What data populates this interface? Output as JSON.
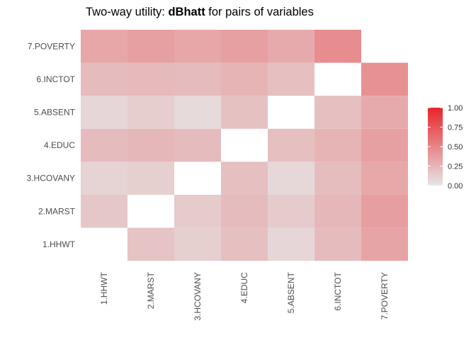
{
  "chart_data": {
    "type": "heatmap",
    "title_prefix": "Two-way utility: ",
    "title_metric": "dBhatt",
    "title_suffix": " for pairs of variables",
    "variables": [
      "1.HHWT",
      "2.MARST",
      "3.HCOVANY",
      "4.EDUC",
      "5.ABSENT",
      "6.INCTOT",
      "7.POVERTY"
    ],
    "cells": [
      {
        "x": "1.HHWT",
        "y": "2.MARST",
        "value": 0.16
      },
      {
        "x": "1.HHWT",
        "y": "3.HCOVANY",
        "value": 0.1
      },
      {
        "x": "1.HHWT",
        "y": "4.EDUC",
        "value": 0.22
      },
      {
        "x": "1.HHWT",
        "y": "5.ABSENT",
        "value": 0.08
      },
      {
        "x": "1.HHWT",
        "y": "6.INCTOT",
        "value": 0.22
      },
      {
        "x": "1.HHWT",
        "y": "7.POVERTY",
        "value": 0.33
      },
      {
        "x": "2.MARST",
        "y": "1.HHWT",
        "value": 0.18
      },
      {
        "x": "2.MARST",
        "y": "3.HCOVANY",
        "value": 0.12
      },
      {
        "x": "2.MARST",
        "y": "4.EDUC",
        "value": 0.24
      },
      {
        "x": "2.MARST",
        "y": "5.ABSENT",
        "value": 0.13
      },
      {
        "x": "2.MARST",
        "y": "6.INCTOT",
        "value": 0.23
      },
      {
        "x": "2.MARST",
        "y": "7.POVERTY",
        "value": 0.36
      },
      {
        "x": "3.HCOVANY",
        "y": "1.HHWT",
        "value": 0.12
      },
      {
        "x": "3.HCOVANY",
        "y": "2.MARST",
        "value": 0.14
      },
      {
        "x": "3.HCOVANY",
        "y": "4.EDUC",
        "value": 0.22
      },
      {
        "x": "3.HCOVANY",
        "y": "5.ABSENT",
        "value": 0.06
      },
      {
        "x": "3.HCOVANY",
        "y": "6.INCTOT",
        "value": 0.22
      },
      {
        "x": "3.HCOVANY",
        "y": "7.POVERTY",
        "value": 0.33
      },
      {
        "x": "4.EDUC",
        "y": "1.HHWT",
        "value": 0.2
      },
      {
        "x": "4.EDUC",
        "y": "2.MARST",
        "value": 0.22
      },
      {
        "x": "4.EDUC",
        "y": "3.HCOVANY",
        "value": 0.2
      },
      {
        "x": "4.EDUC",
        "y": "5.ABSENT",
        "value": 0.19
      },
      {
        "x": "4.EDUC",
        "y": "6.INCTOT",
        "value": 0.26
      },
      {
        "x": "4.EDUC",
        "y": "7.POVERTY",
        "value": 0.36
      },
      {
        "x": "5.ABSENT",
        "y": "1.HHWT",
        "value": 0.08
      },
      {
        "x": "5.ABSENT",
        "y": "2.MARST",
        "value": 0.14
      },
      {
        "x": "5.ABSENT",
        "y": "3.HCOVANY",
        "value": 0.07
      },
      {
        "x": "5.ABSENT",
        "y": "4.EDUC",
        "value": 0.2
      },
      {
        "x": "5.ABSENT",
        "y": "6.INCTOT",
        "value": 0.2
      },
      {
        "x": "5.ABSENT",
        "y": "7.POVERTY",
        "value": 0.31
      },
      {
        "x": "6.INCTOT",
        "y": "1.HHWT",
        "value": 0.22
      },
      {
        "x": "6.INCTOT",
        "y": "2.MARST",
        "value": 0.24
      },
      {
        "x": "6.INCTOT",
        "y": "3.HCOVANY",
        "value": 0.21
      },
      {
        "x": "6.INCTOT",
        "y": "4.EDUC",
        "value": 0.26
      },
      {
        "x": "6.INCTOT",
        "y": "5.ABSENT",
        "value": 0.2
      },
      {
        "x": "6.INCTOT",
        "y": "7.POVERTY",
        "value": 0.46
      },
      {
        "x": "7.POVERTY",
        "y": "1.HHWT",
        "value": 0.34
      },
      {
        "x": "7.POVERTY",
        "y": "2.MARST",
        "value": 0.37
      },
      {
        "x": "7.POVERTY",
        "y": "3.HCOVANY",
        "value": 0.32
      },
      {
        "x": "7.POVERTY",
        "y": "4.EDUC",
        "value": 0.36
      },
      {
        "x": "7.POVERTY",
        "y": "5.ABSENT",
        "value": 0.31
      },
      {
        "x": "7.POVERTY",
        "y": "6.INCTOT",
        "value": 0.44
      }
    ],
    "legend": {
      "ticks": [
        "0.00",
        "0.25",
        "0.50",
        "0.75",
        "1.00"
      ],
      "tick_values": [
        0,
        0.25,
        0.5,
        0.75,
        1.0
      ],
      "range": [
        0,
        1
      ],
      "color_low": "#e6e6e6",
      "color_high": "#e8242a",
      "placement": "right"
    },
    "grid": false
  }
}
